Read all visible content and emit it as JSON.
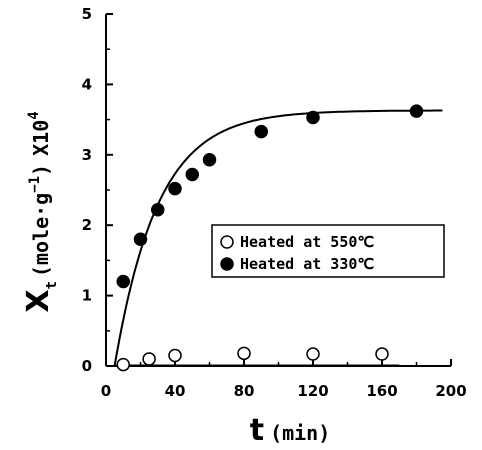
{
  "chart_data": {
    "type": "scatter",
    "xlim": [
      0,
      200
    ],
    "ylim": [
      0,
      5
    ],
    "x_ticks": [
      "0",
      "40",
      "80",
      "120",
      "160",
      "200"
    ],
    "y_ticks": [
      "0",
      "1",
      "2",
      "3",
      "4",
      "5"
    ],
    "xlabel": {
      "symbol": "t",
      "unit": "(min)"
    },
    "ylabel": {
      "symbol": "X",
      "subscript": "t",
      "unit": "(mole·g",
      "unit_exp": "−1",
      "unit_close": ")",
      "scale": "X10",
      "scale_exp": "4"
    },
    "grid": false,
    "legend_position": "center-right",
    "series": [
      {
        "name": "Heated at 550℃",
        "marker": "open-circle",
        "color": "#000000",
        "x": [
          10,
          25,
          40,
          80,
          120,
          160
        ],
        "y": [
          0.02,
          0.1,
          0.15,
          0.18,
          0.17,
          0.17
        ]
      },
      {
        "name": "Heated at 330℃",
        "marker": "filled-circle",
        "color": "#000000",
        "x": [
          10,
          20,
          30,
          40,
          50,
          60,
          90,
          120,
          180
        ],
        "y": [
          1.2,
          1.8,
          2.22,
          2.52,
          2.72,
          2.93,
          3.33,
          3.53,
          3.62
        ],
        "fit_curve": true
      }
    ]
  }
}
